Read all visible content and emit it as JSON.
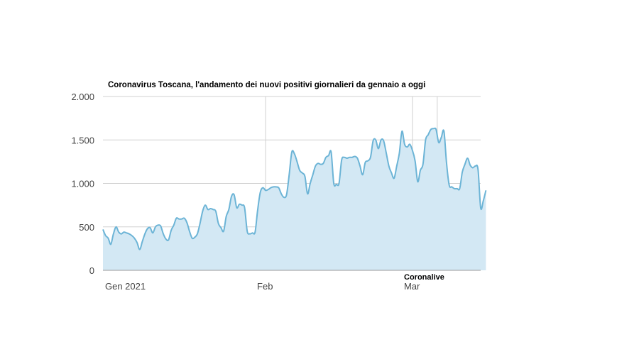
{
  "chart_data": {
    "type": "area",
    "title": "Coronavirus Toscana, l'andamento dei nuovi positivi giornalieri da gennaio a oggi",
    "source_label": "Coronalive",
    "xlabel": "",
    "ylabel": "",
    "x_start": "2021-01-01",
    "x_end": "2021-03-14",
    "x_ticks": [
      {
        "date": "2021-01-01",
        "label": "Gen 2021"
      },
      {
        "date": "2021-02-01",
        "label": "Feb"
      },
      {
        "date": "2021-03-01",
        "label": "Mar"
      }
    ],
    "ylim": [
      0,
      2000
    ],
    "y_ticks": [
      {
        "value": 0,
        "label": "0"
      },
      {
        "value": 500,
        "label": "500"
      },
      {
        "value": 1000,
        "label": "1.000"
      },
      {
        "value": 1500,
        "label": "1.500"
      },
      {
        "value": 2000,
        "label": "2.000"
      }
    ],
    "grid": true,
    "colors": {
      "line": "#6cb4d6",
      "fill": "#d3e8f4",
      "grid": "#d0d0d0",
      "axis": "#9a9a9a"
    },
    "series": [
      {
        "values": [
          [
            0.0,
            470
          ],
          [
            0.5,
            400
          ],
          [
            1.0,
            370
          ],
          [
            1.5,
            300
          ],
          [
            2.0,
            420
          ],
          [
            2.5,
            500
          ],
          [
            3.0,
            440
          ],
          [
            3.5,
            420
          ],
          [
            4.0,
            440
          ],
          [
            4.5,
            430
          ],
          [
            5.0,
            420
          ],
          [
            5.5,
            400
          ],
          [
            6.0,
            370
          ],
          [
            6.5,
            320
          ],
          [
            7.0,
            240
          ],
          [
            7.5,
            330
          ],
          [
            8.0,
            420
          ],
          [
            8.5,
            480
          ],
          [
            9.0,
            490
          ],
          [
            9.5,
            430
          ],
          [
            10.0,
            500
          ],
          [
            10.5,
            520
          ],
          [
            11.0,
            510
          ],
          [
            11.5,
            420
          ],
          [
            12.0,
            360
          ],
          [
            12.5,
            350
          ],
          [
            13.0,
            460
          ],
          [
            13.5,
            520
          ],
          [
            14.0,
            600
          ],
          [
            14.5,
            590
          ],
          [
            15.0,
            590
          ],
          [
            15.5,
            600
          ],
          [
            16.0,
            550
          ],
          [
            16.5,
            450
          ],
          [
            17.0,
            370
          ],
          [
            17.5,
            380
          ],
          [
            18.0,
            420
          ],
          [
            18.5,
            540
          ],
          [
            19.0,
            680
          ],
          [
            19.5,
            750
          ],
          [
            20.0,
            700
          ],
          [
            20.5,
            710
          ],
          [
            21.0,
            700
          ],
          [
            21.5,
            680
          ],
          [
            22.0,
            540
          ],
          [
            22.5,
            490
          ],
          [
            23.0,
            450
          ],
          [
            23.5,
            620
          ],
          [
            24.0,
            700
          ],
          [
            24.5,
            850
          ],
          [
            25.0,
            870
          ],
          [
            25.5,
            720
          ],
          [
            26.0,
            760
          ],
          [
            26.5,
            750
          ],
          [
            27.0,
            720
          ],
          [
            27.5,
            450
          ],
          [
            28.0,
            420
          ],
          [
            28.5,
            430
          ],
          [
            29.0,
            440
          ],
          [
            29.5,
            700
          ],
          [
            30.0,
            900
          ],
          [
            30.5,
            950
          ],
          [
            31.0,
            920
          ],
          [
            31.5,
            930
          ],
          [
            32.0,
            950
          ],
          [
            32.5,
            960
          ],
          [
            33.0,
            960
          ],
          [
            33.5,
            950
          ],
          [
            34.0,
            880
          ],
          [
            34.5,
            840
          ],
          [
            35.0,
            870
          ],
          [
            35.5,
            1100
          ],
          [
            36.0,
            1360
          ],
          [
            36.5,
            1340
          ],
          [
            37.0,
            1250
          ],
          [
            37.5,
            1150
          ],
          [
            38.0,
            1120
          ],
          [
            38.5,
            1080
          ],
          [
            39.0,
            880
          ],
          [
            39.5,
            1000
          ],
          [
            40.0,
            1100
          ],
          [
            40.5,
            1200
          ],
          [
            41.0,
            1230
          ],
          [
            41.5,
            1220
          ],
          [
            42.0,
            1230
          ],
          [
            42.5,
            1300
          ],
          [
            43.0,
            1320
          ],
          [
            43.5,
            1360
          ],
          [
            44.0,
            1000
          ],
          [
            44.5,
            990
          ],
          [
            45.0,
            1000
          ],
          [
            45.5,
            1270
          ],
          [
            46.0,
            1300
          ],
          [
            46.5,
            1290
          ],
          [
            47.0,
            1300
          ],
          [
            47.5,
            1300
          ],
          [
            48.0,
            1310
          ],
          [
            48.5,
            1290
          ],
          [
            49.0,
            1200
          ],
          [
            49.5,
            1100
          ],
          [
            50.0,
            1240
          ],
          [
            50.5,
            1260
          ],
          [
            51.0,
            1300
          ],
          [
            51.5,
            1490
          ],
          [
            52.0,
            1500
          ],
          [
            52.5,
            1400
          ],
          [
            53.0,
            1500
          ],
          [
            53.5,
            1490
          ],
          [
            54.0,
            1350
          ],
          [
            54.5,
            1200
          ],
          [
            55.0,
            1120
          ],
          [
            55.5,
            1060
          ],
          [
            56.0,
            1200
          ],
          [
            56.5,
            1350
          ],
          [
            57.0,
            1600
          ],
          [
            57.5,
            1450
          ],
          [
            58.0,
            1420
          ],
          [
            58.5,
            1450
          ],
          [
            59.0,
            1380
          ],
          [
            59.5,
            1260
          ],
          [
            60.0,
            1020
          ],
          [
            60.5,
            1150
          ],
          [
            61.0,
            1220
          ],
          [
            61.5,
            1500
          ],
          [
            62.0,
            1560
          ],
          [
            62.5,
            1620
          ],
          [
            63.0,
            1630
          ],
          [
            63.5,
            1620
          ],
          [
            64.0,
            1470
          ],
          [
            64.5,
            1530
          ],
          [
            65.0,
            1600
          ],
          [
            65.5,
            1230
          ],
          [
            66.0,
            980
          ],
          [
            66.5,
            960
          ],
          [
            67.0,
            940
          ],
          [
            67.5,
            940
          ],
          [
            68.0,
            940
          ],
          [
            68.5,
            1130
          ],
          [
            69.0,
            1220
          ],
          [
            69.5,
            1290
          ],
          [
            70.0,
            1210
          ],
          [
            70.5,
            1180
          ],
          [
            71.0,
            1200
          ],
          [
            71.5,
            1160
          ],
          [
            72.0,
            720
          ],
          [
            72.5,
            800
          ],
          [
            73.0,
            920
          ]
        ]
      }
    ]
  }
}
